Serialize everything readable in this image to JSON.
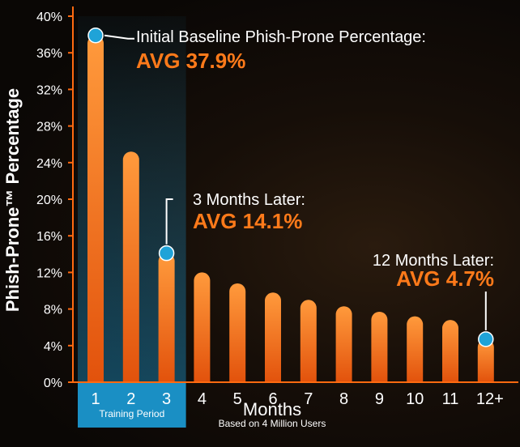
{
  "colors": {
    "bar_top": "#ff9a3c",
    "bar_bottom": "#e2520c",
    "marker": "#1fa3d8",
    "highlight_panel": "#1a8fc4",
    "accent_text": "#ff7a1a",
    "axis": "#ff6a10",
    "text": "#ffffff"
  },
  "chart_data": {
    "type": "bar",
    "ylabel": "Phish-Prone™ Percentage",
    "xlabel": "Months",
    "xlabel_sub": "Based on 4 Million Users",
    "ylim": [
      0,
      40
    ],
    "yticks": [
      "0%",
      "4%",
      "8%",
      "12%",
      "16%",
      "20%",
      "24%",
      "28%",
      "32%",
      "36%",
      "40%"
    ],
    "categories": [
      "1",
      "2",
      "3",
      "4",
      "5",
      "6",
      "7",
      "8",
      "9",
      "10",
      "11",
      "12+"
    ],
    "values": [
      37.9,
      25.2,
      14.1,
      12.0,
      10.8,
      9.8,
      9.0,
      8.3,
      7.7,
      7.2,
      6.8,
      4.7
    ],
    "highlight": {
      "label": "Training Period",
      "categories": [
        "1",
        "2",
        "3"
      ]
    },
    "annotations": [
      {
        "index": 0,
        "line1": "Initial Baseline Phish-Prone Percentage:",
        "line2": "AVG 37.9%"
      },
      {
        "index": 2,
        "line1": "3 Months Later:",
        "line2": "AVG 14.1%"
      },
      {
        "index": 11,
        "line1": "12 Months Later:",
        "line2": "AVG 4.7%"
      }
    ]
  }
}
